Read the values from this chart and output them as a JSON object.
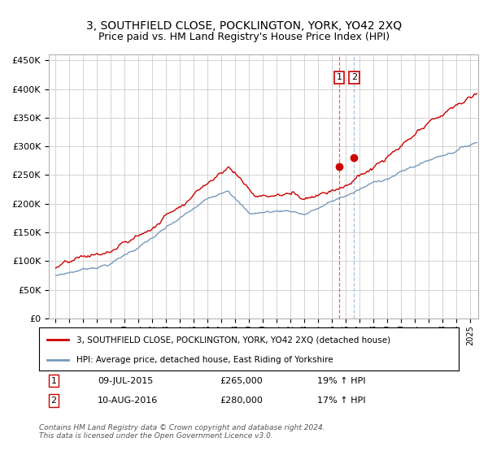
{
  "title": "3, SOUTHFIELD CLOSE, POCKLINGTON, YORK, YO42 2XQ",
  "subtitle": "Price paid vs. HM Land Registry's House Price Index (HPI)",
  "legend_line1": "3, SOUTHFIELD CLOSE, POCKLINGTON, YORK, YO42 2XQ (detached house)",
  "legend_line2": "HPI: Average price, detached house, East Riding of Yorkshire",
  "transaction1_label": "09-JUL-2015",
  "transaction1_price": "£265,000",
  "transaction1_hpi": "19% ↑ HPI",
  "transaction2_label": "10-AUG-2016",
  "transaction2_price": "£280,000",
  "transaction2_hpi": "17% ↑ HPI",
  "footer": "Contains HM Land Registry data © Crown copyright and database right 2024.\nThis data is licensed under the Open Government Licence v3.0.",
  "red_color": "#cc0000",
  "blue_color": "#7799bb",
  "grid_color": "#cccccc",
  "background_color": "#ffffff",
  "ylim": [
    0,
    460000
  ],
  "yticks": [
    0,
    50000,
    100000,
    150000,
    200000,
    250000,
    300000,
    350000,
    400000,
    450000
  ],
  "start_year": 1995,
  "end_year": 2025
}
